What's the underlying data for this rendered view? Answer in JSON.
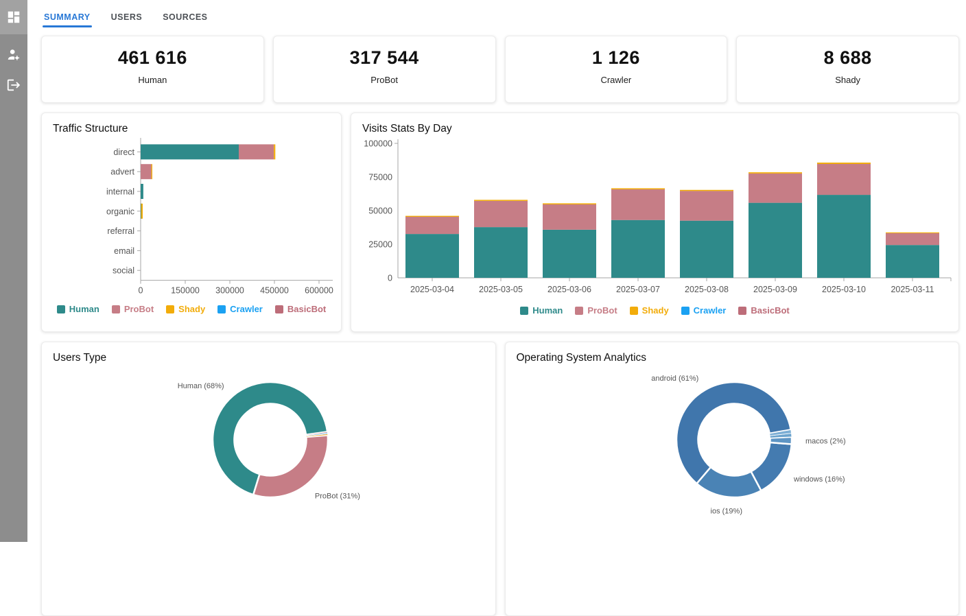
{
  "colors": {
    "accent_blue": "#2878d6",
    "sidebar_bg": "#8d8d8d",
    "sidebar_active_bg": "#a2a2a2",
    "human_teal": "#2e8a8a",
    "probot_rose": "#c67d86",
    "shady_amber": "#f2ac0a",
    "crawler_blue": "#1ba1f2",
    "basicbot_rose": "#bd6d79",
    "axis_line": "#a6a6a6",
    "tick_text": "#555555"
  },
  "sidebar": {
    "icons": [
      {
        "name": "dashboard-icon"
      },
      {
        "name": "user-settings-icon"
      },
      {
        "name": "logout-icon"
      }
    ]
  },
  "tabs": [
    {
      "label": "SUMMARY",
      "active": true
    },
    {
      "label": "USERS",
      "active": false
    },
    {
      "label": "SOURCES",
      "active": false
    }
  ],
  "stat_cards": [
    {
      "value": "461 616",
      "label": "Human"
    },
    {
      "value": "317 544",
      "label": "ProBot"
    },
    {
      "value": "1 126",
      "label": "Crawler"
    },
    {
      "value": "8 688",
      "label": "Shady"
    }
  ],
  "chart_data": [
    {
      "id": "traffic",
      "type": "bar",
      "orientation": "horizontal",
      "title": "Traffic Structure",
      "categories": [
        "direct",
        "advert",
        "internal",
        "organic",
        "referral",
        "email",
        "social"
      ],
      "series": [
        {
          "name": "Human",
          "color": "#2e8a8a",
          "values": [
            330000,
            0,
            9000,
            1500,
            0,
            0,
            0
          ]
        },
        {
          "name": "ProBot",
          "color": "#c67d86",
          "values": [
            118000,
            36000,
            0,
            0,
            0,
            0,
            0
          ]
        },
        {
          "name": "Shady",
          "color": "#f2ac0a",
          "values": [
            5000,
            1500,
            0,
            5500,
            0,
            0,
            0
          ]
        },
        {
          "name": "Crawler",
          "color": "#1ba1f2",
          "values": [
            0,
            0,
            0,
            0,
            0,
            0,
            0
          ]
        },
        {
          "name": "BasicBot",
          "color": "#bd6d79",
          "values": [
            0,
            0,
            0,
            0,
            0,
            0,
            0
          ]
        }
      ],
      "xticks": [
        0,
        150000,
        300000,
        450000,
        600000
      ],
      "xmax": 600000,
      "legend_position": "bottom"
    },
    {
      "id": "visits",
      "type": "bar",
      "orientation": "vertical",
      "title": "Visits Stats By Day",
      "categories": [
        "2025-03-04",
        "2025-03-05",
        "2025-03-06",
        "2025-03-07",
        "2025-03-08",
        "2025-03-09",
        "2025-03-10",
        "2025-03-11"
      ],
      "series": [
        {
          "name": "Human",
          "color": "#2e8a8a",
          "values": [
            32600,
            37700,
            35800,
            43000,
            42500,
            55800,
            61700,
            24400
          ]
        },
        {
          "name": "ProBot",
          "color": "#c67d86",
          "values": [
            12800,
            19500,
            18800,
            22800,
            22100,
            21800,
            23000,
            8800
          ]
        },
        {
          "name": "Shady",
          "color": "#f2ac0a",
          "values": [
            700,
            800,
            800,
            800,
            800,
            900,
            1000,
            600
          ]
        },
        {
          "name": "Crawler",
          "color": "#1ba1f2",
          "values": [
            0,
            0,
            0,
            0,
            0,
            0,
            0,
            0
          ]
        },
        {
          "name": "BasicBot",
          "color": "#bd6d79",
          "values": [
            0,
            0,
            0,
            0,
            0,
            0,
            0,
            0
          ]
        }
      ],
      "yticks": [
        0,
        25000,
        50000,
        75000,
        100000
      ],
      "ymax": 100000,
      "legend_position": "bottom"
    },
    {
      "id": "users_type",
      "type": "donut",
      "title": "Users Type",
      "start_angle": 8,
      "slices": [
        {
          "name": "Human",
          "pct": 68,
          "color": "#2e8a8a",
          "label": "Human (68%)"
        },
        {
          "name": "ProBot",
          "pct": 31,
          "color": "#c67d86",
          "label": "ProBot (31%)"
        },
        {
          "name": "Shady",
          "pct": 0.4,
          "color": "#f5a623",
          "label": ""
        },
        {
          "name": "Crawler",
          "pct": 0.3,
          "color": "#1ba1f2",
          "label": ""
        },
        {
          "name": "BasicBot",
          "pct": 0.3,
          "color": "#bd6d79",
          "label": ""
        }
      ]
    },
    {
      "id": "os",
      "type": "donut",
      "title": "Operating System Analytics",
      "start_angle": 10,
      "slices": [
        {
          "name": "android",
          "pct": 61,
          "color": "#4076ac",
          "label": "android (61%)"
        },
        {
          "name": "ios",
          "pct": 19,
          "color": "#4a83b5",
          "label": "ios (19%)"
        },
        {
          "name": "windows",
          "pct": 16,
          "color": "#447bb0",
          "label": "windows (16%)"
        },
        {
          "name": "macos",
          "pct": 2,
          "color": "#5e95c4",
          "label": "macos (2%)"
        },
        {
          "name": "",
          "pct": 1,
          "color": "#6ba3cd",
          "label": ""
        },
        {
          "name": "",
          "pct": 1,
          "color": "#7dafd5",
          "label": ""
        }
      ]
    }
  ]
}
